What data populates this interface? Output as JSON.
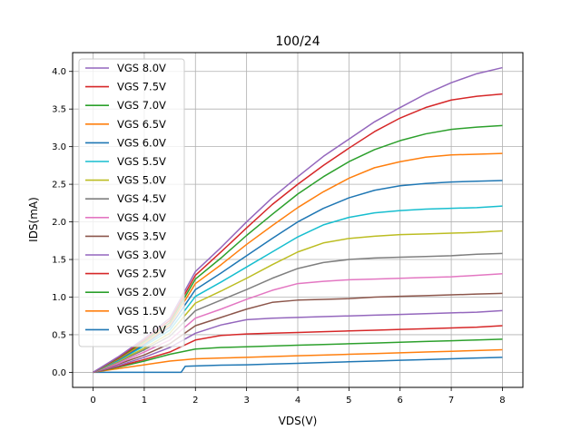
{
  "chart_data": {
    "type": "line",
    "title": "100/24",
    "xlabel": "VDS(V)",
    "ylabel": "IDS(mA)",
    "xlim": [
      -0.4,
      8.4
    ],
    "ylim": [
      -0.2,
      4.25
    ],
    "xticks": [
      0,
      1,
      2,
      3,
      4,
      5,
      6,
      7,
      8
    ],
    "yticks": [
      0.0,
      0.5,
      1.0,
      1.5,
      2.0,
      2.5,
      3.0,
      3.5,
      4.0
    ],
    "xtick_labels": [
      "0",
      "1",
      "2",
      "3",
      "4",
      "5",
      "6",
      "7",
      "8"
    ],
    "ytick_labels": [
      "0.0",
      "0.5",
      "1.0",
      "1.5",
      "2.0",
      "2.5",
      "3.0",
      "3.5",
      "4.0"
    ],
    "grid": true,
    "legend_position": "top-left",
    "series": [
      {
        "name": "VGS 8.0V",
        "color": "#9467bd",
        "x": [
          0,
          0.5,
          1,
          1.5,
          2,
          2.5,
          3,
          3.5,
          4,
          4.5,
          5,
          5.5,
          6,
          6.5,
          7,
          7.5,
          8
        ],
        "y": [
          0,
          0.21,
          0.45,
          0.72,
          1.34,
          1.66,
          2.0,
          2.32,
          2.6,
          2.87,
          3.1,
          3.33,
          3.52,
          3.7,
          3.85,
          3.97,
          4.05
        ]
      },
      {
        "name": "VGS 7.5V",
        "color": "#d62728",
        "x": [
          0,
          0.5,
          1,
          1.5,
          2,
          2.5,
          3,
          3.5,
          4,
          4.5,
          5,
          5.5,
          6,
          6.5,
          7,
          7.5,
          8
        ],
        "y": [
          0,
          0.2,
          0.43,
          0.69,
          1.29,
          1.6,
          1.92,
          2.23,
          2.5,
          2.75,
          2.98,
          3.2,
          3.38,
          3.52,
          3.62,
          3.67,
          3.7
        ]
      },
      {
        "name": "VGS 7.0V",
        "color": "#2ca02c",
        "x": [
          0,
          0.5,
          1,
          1.5,
          2,
          2.5,
          3,
          3.5,
          4,
          4.5,
          5,
          5.5,
          6,
          6.5,
          7,
          7.5,
          8
        ],
        "y": [
          0,
          0.19,
          0.41,
          0.66,
          1.24,
          1.52,
          1.82,
          2.1,
          2.37,
          2.6,
          2.8,
          2.96,
          3.08,
          3.17,
          3.23,
          3.26,
          3.28
        ]
      },
      {
        "name": "VGS 6.5V",
        "color": "#ff7f0e",
        "x": [
          0,
          0.5,
          1,
          1.5,
          2,
          2.5,
          3,
          3.5,
          4,
          4.5,
          5,
          5.5,
          6,
          6.5,
          7,
          7.5,
          8
        ],
        "y": [
          0,
          0.18,
          0.39,
          0.63,
          1.18,
          1.43,
          1.7,
          1.95,
          2.19,
          2.4,
          2.58,
          2.72,
          2.8,
          2.86,
          2.89,
          2.9,
          2.91
        ]
      },
      {
        "name": "VGS 6.0V",
        "color": "#1f77b4",
        "x": [
          0,
          0.5,
          1,
          1.5,
          2,
          2.5,
          3,
          3.5,
          4,
          4.5,
          5,
          5.5,
          6,
          6.5,
          7,
          7.5,
          8
        ],
        "y": [
          0,
          0.17,
          0.37,
          0.6,
          1.1,
          1.32,
          1.55,
          1.78,
          2.0,
          2.18,
          2.32,
          2.42,
          2.48,
          2.51,
          2.53,
          2.54,
          2.55
        ]
      },
      {
        "name": "VGS 5.5V",
        "color": "#17becf",
        "x": [
          0,
          0.5,
          1,
          1.5,
          2,
          2.5,
          3,
          3.5,
          4,
          4.5,
          5,
          5.5,
          6,
          6.5,
          7,
          7.5,
          8
        ],
        "y": [
          0,
          0.16,
          0.35,
          0.56,
          1.01,
          1.2,
          1.4,
          1.6,
          1.8,
          1.96,
          2.06,
          2.12,
          2.15,
          2.17,
          2.18,
          2.19,
          2.21
        ]
      },
      {
        "name": "VGS 5.0V",
        "color": "#bcbd22",
        "x": [
          0,
          0.5,
          1,
          1.5,
          2,
          2.5,
          3,
          3.5,
          4,
          4.5,
          5,
          5.5,
          6,
          6.5,
          7,
          7.5,
          8
        ],
        "y": [
          0,
          0.15,
          0.32,
          0.52,
          0.92,
          1.08,
          1.25,
          1.43,
          1.6,
          1.72,
          1.78,
          1.81,
          1.83,
          1.84,
          1.85,
          1.86,
          1.88
        ]
      },
      {
        "name": "VGS 4.5V",
        "color": "#7f7f7f",
        "x": [
          0,
          0.5,
          1,
          1.5,
          2,
          2.5,
          3,
          3.5,
          4,
          4.5,
          5,
          5.5,
          6,
          6.5,
          7,
          7.5,
          8
        ],
        "y": [
          0,
          0.14,
          0.3,
          0.48,
          0.82,
          0.96,
          1.1,
          1.25,
          1.38,
          1.46,
          1.5,
          1.52,
          1.53,
          1.54,
          1.55,
          1.57,
          1.58
        ]
      },
      {
        "name": "VGS 4.0V",
        "color": "#e377c2",
        "x": [
          0,
          0.5,
          1,
          1.5,
          2,
          2.5,
          3,
          3.5,
          4,
          4.5,
          5,
          5.5,
          6,
          6.5,
          7,
          7.5,
          8
        ],
        "y": [
          0,
          0.12,
          0.27,
          0.43,
          0.72,
          0.84,
          0.97,
          1.09,
          1.18,
          1.21,
          1.23,
          1.24,
          1.25,
          1.26,
          1.27,
          1.29,
          1.31
        ]
      },
      {
        "name": "VGS 3.5V",
        "color": "#8c564b",
        "x": [
          0,
          0.5,
          1,
          1.5,
          2,
          2.5,
          3,
          3.5,
          4,
          4.5,
          5,
          5.5,
          6,
          6.5,
          7,
          7.5,
          8
        ],
        "y": [
          0,
          0.11,
          0.23,
          0.38,
          0.62,
          0.73,
          0.84,
          0.93,
          0.96,
          0.97,
          0.98,
          1.0,
          1.01,
          1.02,
          1.03,
          1.04,
          1.05
        ]
      },
      {
        "name": "VGS 3.0V",
        "color": "#9467bd",
        "x": [
          0,
          0.5,
          1,
          1.5,
          2,
          2.5,
          3,
          3.5,
          4,
          4.5,
          5,
          5.5,
          6,
          6.5,
          7,
          7.5,
          8
        ],
        "y": [
          0,
          0.09,
          0.2,
          0.33,
          0.52,
          0.63,
          0.7,
          0.72,
          0.73,
          0.74,
          0.75,
          0.76,
          0.77,
          0.78,
          0.79,
          0.8,
          0.82
        ]
      },
      {
        "name": "VGS 2.5V",
        "color": "#d62728",
        "x": [
          0,
          0.5,
          1,
          1.5,
          2,
          2.5,
          3,
          3.5,
          4,
          4.5,
          5,
          5.5,
          6,
          6.5,
          7,
          7.5,
          8
        ],
        "y": [
          0,
          0.08,
          0.17,
          0.27,
          0.43,
          0.49,
          0.51,
          0.52,
          0.53,
          0.54,
          0.55,
          0.56,
          0.57,
          0.58,
          0.59,
          0.6,
          0.62
        ]
      },
      {
        "name": "VGS 2.0V",
        "color": "#2ca02c",
        "x": [
          0,
          0.5,
          1,
          1.5,
          2,
          2.5,
          3,
          3.5,
          4,
          4.5,
          5,
          5.5,
          6,
          6.5,
          7,
          7.5,
          8
        ],
        "y": [
          0,
          0.07,
          0.15,
          0.24,
          0.31,
          0.33,
          0.34,
          0.35,
          0.36,
          0.37,
          0.38,
          0.39,
          0.4,
          0.41,
          0.42,
          0.43,
          0.44
        ]
      },
      {
        "name": "VGS 1.5V",
        "color": "#ff7f0e",
        "x": [
          0,
          0.5,
          1,
          1.5,
          2,
          2.5,
          3,
          3.5,
          4,
          4.5,
          5,
          5.5,
          6,
          6.5,
          7,
          7.5,
          8
        ],
        "y": [
          0,
          0.05,
          0.1,
          0.15,
          0.18,
          0.19,
          0.2,
          0.21,
          0.22,
          0.23,
          0.24,
          0.25,
          0.26,
          0.27,
          0.28,
          0.29,
          0.3
        ]
      },
      {
        "name": "VGS 1.0V",
        "color": "#1f77b4",
        "x": [
          0,
          0.5,
          1,
          1.5,
          1.72,
          1.8,
          2,
          2.5,
          3,
          3.5,
          4,
          4.5,
          5,
          5.5,
          6,
          6.5,
          7,
          7.5,
          8
        ],
        "y": [
          0,
          0,
          0,
          0,
          0,
          0.08,
          0.085,
          0.095,
          0.1,
          0.11,
          0.12,
          0.13,
          0.14,
          0.15,
          0.16,
          0.17,
          0.18,
          0.19,
          0.2
        ]
      }
    ]
  }
}
